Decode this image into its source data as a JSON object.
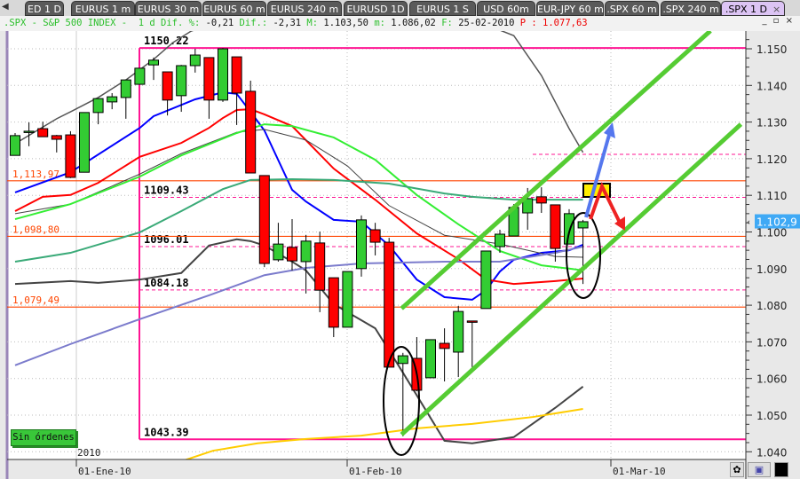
{
  "tabs": [
    {
      "label": "ED 1 D"
    },
    {
      "label": "EURUS 1 m"
    },
    {
      "label": "EURUS 30 m"
    },
    {
      "label": "EURUS 60 m"
    },
    {
      "label": "EURUS 240 m"
    },
    {
      "label": "EURUSD 1D"
    },
    {
      "label": "EURUS 1 S"
    },
    {
      "label": "USD 60m"
    },
    {
      "label": "EUR-JPY 60 m"
    },
    {
      "label": ".SPX 60 m"
    },
    {
      "label": ".SPX 240 m"
    },
    {
      "label": ".SPX 1 D",
      "active": true
    }
  ],
  "tab_close": "×",
  "info": {
    "symbol": ".SPX - S&P 500 INDEX -  1 d",
    "dif_pct_label": "Dif. %:",
    "dif_pct": "-0,21",
    "dif_label": "Dif.:",
    "dif": "-2,31",
    "max_label": "M:",
    "max": "1.103,50",
    "min_label": "m:",
    "min": "1.086,02",
    "date_label": "F:",
    "date": "25-02-2010",
    "price_label": "P :",
    "price": "1.077,63"
  },
  "window_controls": "_ ▫ ×",
  "orders_button": "Sin órdenes",
  "year_label": "2010",
  "current_price_tag": "1.102,9",
  "colors": {
    "up": "#33cc33",
    "down": "#ff0000",
    "pink": "#ff1493",
    "orange": "#ff4500",
    "channel": "#55cc33"
  },
  "chart_data": {
    "type": "candlestick",
    "symbol": ".SPX",
    "ylim": [
      1038,
      1158
    ],
    "yticks": [
      "1.040",
      "1.050",
      "1.060",
      "1.070",
      "1.080",
      "1.090",
      "1.100",
      "1.110",
      "1.120",
      "1.130",
      "1.140",
      "1.150"
    ],
    "xticks": [
      "01-Ene-10",
      "01-Feb-10",
      "01-Mar-10"
    ],
    "candles": [
      [
        1120.9,
        1127.0,
        1120.9,
        1126.3
      ],
      [
        1127.5,
        1129.9,
        1123.4,
        1127.5
      ],
      [
        1128.2,
        1130.1,
        1126.0,
        1126.0
      ],
      [
        1126.3,
        1126.5,
        1121.7,
        1125.3
      ],
      [
        1126.5,
        1127.5,
        1114.7,
        1114.9
      ],
      [
        1116.3,
        1132.6,
        1116.3,
        1132.6
      ],
      [
        1132.6,
        1136.4,
        1129.4,
        1136.4
      ],
      [
        1135.5,
        1137.9,
        1133.5,
        1136.9
      ],
      [
        1136.7,
        1141.5,
        1130.9,
        1141.5
      ],
      [
        1140.3,
        1144.7,
        1140.3,
        1144.7
      ],
      [
        1145.6,
        1147.6,
        1141.5,
        1146.9
      ],
      [
        1143.7,
        1143.7,
        1131.8,
        1136.0
      ],
      [
        1137.2,
        1145.6,
        1132.8,
        1145.4
      ],
      [
        1145.4,
        1150.0,
        1143.5,
        1148.3
      ],
      [
        1147.6,
        1147.6,
        1130.9,
        1136.0
      ],
      [
        1136.0,
        1150.22,
        1135.5,
        1150.0
      ],
      [
        1147.8,
        1147.8,
        1129.2,
        1137.9
      ],
      [
        1138.4,
        1141.3,
        1116.1,
        1116.1
      ],
      [
        1115.4,
        1115.4,
        1090.4,
        1091.4
      ],
      [
        1092.4,
        1102.5,
        1091.9,
        1096.7
      ],
      [
        1095.8,
        1103.5,
        1089.5,
        1092.1
      ],
      [
        1091.9,
        1099.2,
        1083.2,
        1097.5
      ],
      [
        1097.0,
        1100.1,
        1078.1,
        1084.1
      ],
      [
        1087.5,
        1087.5,
        1071.3,
        1074.0
      ],
      [
        1074.0,
        1089.2,
        1074.0,
        1089.2
      ],
      [
        1090.0,
        1104.5,
        1087.8,
        1103.3
      ],
      [
        1100.6,
        1102.5,
        1093.6,
        1097.2
      ],
      [
        1097.2,
        1098.4,
        1063.1,
        1063.1
      ],
      [
        1064.1,
        1067.0,
        1044.2,
        1066.2
      ],
      [
        1065.5,
        1071.3,
        1056.5,
        1056.8
      ],
      [
        1060.2,
        1070.6,
        1060.2,
        1070.6
      ],
      [
        1069.6,
        1073.7,
        1059.2,
        1068.2
      ],
      [
        1067.2,
        1079.8,
        1060.4,
        1078.3
      ],
      [
        1075.7,
        1075.7,
        1063.1,
        1075.4
      ],
      [
        1079.1,
        1094.8,
        1079.1,
        1094.8
      ],
      [
        1096.0,
        1100.6,
        1094.3,
        1099.4
      ],
      [
        1098.9,
        1107.6,
        1098.9,
        1106.7
      ],
      [
        1105.2,
        1112.0,
        1100.6,
        1109.1
      ],
      [
        1109.6,
        1112.2,
        1105.2,
        1107.9
      ],
      [
        1107.4,
        1107.4,
        1091.9,
        1095.5
      ],
      [
        1096.7,
        1106.2,
        1096.7,
        1105.0
      ],
      [
        1101.1,
        1103.3,
        1085.8,
        1102.8
      ]
    ],
    "candle_fields": [
      "open",
      "high",
      "low",
      "close"
    ],
    "indicators": [
      {
        "color": "#0000ff",
        "width": 2,
        "points": [
          [
            0,
            1110.8
          ],
          [
            4,
            1116.3
          ],
          [
            9,
            1128.4
          ],
          [
            10,
            1131.6
          ],
          [
            13,
            1136.2
          ],
          [
            15,
            1138.1
          ],
          [
            16,
            1137.7
          ],
          [
            17,
            1132.8
          ],
          [
            18,
            1127.7
          ],
          [
            20,
            1111.5
          ],
          [
            21,
            1108.3
          ],
          [
            23,
            1103.3
          ],
          [
            25,
            1102.8
          ],
          [
            27,
            1096.3
          ],
          [
            29,
            1087
          ],
          [
            31,
            1082.2
          ],
          [
            33,
            1081.5
          ],
          [
            34,
            1084.1
          ],
          [
            35,
            1089.2
          ],
          [
            36,
            1092.4
          ],
          [
            38,
            1094.3
          ],
          [
            40,
            1095
          ],
          [
            41,
            1096.5
          ]
        ]
      },
      {
        "color": "#ff0000",
        "width": 2,
        "points": [
          [
            0,
            1105.7
          ],
          [
            2,
            1109.6
          ],
          [
            4,
            1110.1
          ],
          [
            6,
            1113.4
          ],
          [
            9,
            1120.5
          ],
          [
            12,
            1124.3
          ],
          [
            14,
            1128.4
          ],
          [
            15,
            1131.1
          ],
          [
            16,
            1133.3
          ],
          [
            17,
            1133.5
          ],
          [
            18,
            1132.1
          ],
          [
            20,
            1128.9
          ],
          [
            23,
            1117.3
          ],
          [
            26,
            1108.8
          ],
          [
            29,
            1099.6
          ],
          [
            32,
            1092.6
          ],
          [
            34,
            1087.0
          ],
          [
            36,
            1085.8
          ],
          [
            39,
            1086.6
          ],
          [
            41,
            1087.3
          ]
        ]
      },
      {
        "color": "#444444",
        "width": 1,
        "points": [
          [
            0,
            1105.0
          ],
          [
            4,
            1107.6
          ],
          [
            9,
            1115.8
          ],
          [
            12,
            1121.4
          ],
          [
            16,
            1127.2
          ],
          [
            18,
            1128.0
          ],
          [
            21,
            1125.1
          ],
          [
            24,
            1118.0
          ],
          [
            27,
            1107.2
          ],
          [
            31,
            1099.1
          ],
          [
            35,
            1096.7
          ],
          [
            39,
            1093.3
          ],
          [
            41,
            1093.1
          ]
        ]
      },
      {
        "color": "#33ee33",
        "width": 2,
        "points": [
          [
            0,
            1103.5
          ],
          [
            4,
            1107.6
          ],
          [
            9,
            1115.1
          ],
          [
            12,
            1120.9
          ],
          [
            16,
            1127.0
          ],
          [
            18,
            1129.4
          ],
          [
            20,
            1128.9
          ],
          [
            23,
            1125.8
          ],
          [
            26,
            1119.7
          ],
          [
            29,
            1110.1
          ],
          [
            32,
            1102.1
          ],
          [
            35,
            1094.8
          ],
          [
            38,
            1090.9
          ],
          [
            40,
            1090.0
          ],
          [
            41,
            1089.5
          ]
        ]
      },
      {
        "color": "#3aaa78",
        "width": 2,
        "points": [
          [
            0,
            1091.9
          ],
          [
            4,
            1094.3
          ],
          [
            9,
            1099.9
          ],
          [
            12,
            1105.7
          ],
          [
            15,
            1111.7
          ],
          [
            17,
            1114.2
          ],
          [
            20,
            1114.4
          ],
          [
            23,
            1114.2
          ],
          [
            27,
            1113.2
          ],
          [
            31,
            1110.5
          ],
          [
            33,
            1109.6
          ],
          [
            36,
            1108.8
          ],
          [
            41,
            1108.8
          ]
        ]
      },
      {
        "color": "#444444",
        "width": 2,
        "points": [
          [
            0,
            1085.8
          ],
          [
            4,
            1086.6
          ],
          [
            6,
            1086.1
          ],
          [
            9,
            1087.0
          ],
          [
            12,
            1088.8
          ],
          [
            14,
            1096.3
          ],
          [
            16,
            1098.0
          ],
          [
            17,
            1097.5
          ],
          [
            18,
            1096.3
          ],
          [
            20,
            1091.9
          ],
          [
            21,
            1089.5
          ],
          [
            23,
            1080.3
          ],
          [
            26,
            1073.7
          ],
          [
            28,
            1061.6
          ],
          [
            31,
            1043.0
          ],
          [
            33,
            1042.3
          ],
          [
            36,
            1044.0
          ],
          [
            39,
            1052.0
          ],
          [
            41,
            1057.8
          ]
        ]
      },
      {
        "color": "#555555",
        "width": 1.5,
        "points": [
          [
            0,
            1124.1
          ],
          [
            3,
            1130.9
          ],
          [
            4,
            1132.8
          ],
          [
            6,
            1136.7
          ],
          [
            8,
            1141.5
          ],
          [
            10,
            1147.1
          ],
          [
            11.4,
            1151.7
          ],
          [
            12.7,
            1154.8
          ],
          [
            14,
            1156.5
          ],
          [
            16,
            1162
          ],
          [
            31,
            1162
          ],
          [
            33.5,
            1157.3
          ],
          [
            36,
            1153.6
          ],
          [
            38,
            1142.7
          ],
          [
            40,
            1128.2
          ],
          [
            41,
            1121.7
          ]
        ]
      },
      {
        "color": "#7b7bcc",
        "width": 2,
        "points": [
          [
            0,
            1063.6
          ],
          [
            4,
            1069.4
          ],
          [
            9,
            1076.2
          ],
          [
            14,
            1082.7
          ],
          [
            18,
            1088.2
          ],
          [
            21,
            1090.2
          ],
          [
            25,
            1091.4
          ],
          [
            31,
            1091.9
          ],
          [
            35,
            1091.9
          ],
          [
            39,
            1094.3
          ],
          [
            41,
            1096.0
          ]
        ]
      },
      {
        "color": "#ffcc00",
        "width": 2,
        "points": [
          [
            12,
            1037.4
          ],
          [
            14.3,
            1040.3
          ],
          [
            17.5,
            1042.3
          ],
          [
            21,
            1043.5
          ],
          [
            25,
            1044.4
          ],
          [
            29,
            1046.4
          ],
          [
            33,
            1047.6
          ],
          [
            37.4,
            1049.5
          ],
          [
            41,
            1051.7
          ]
        ]
      }
    ],
    "levels": [
      {
        "value": 1150.22,
        "label": "1150.22",
        "style": "pink-solid"
      },
      {
        "value": 1043.39,
        "label": "1043.39",
        "style": "pink-solid"
      },
      {
        "value": 1109.43,
        "label": "1109.43",
        "style": "pink-dashed"
      },
      {
        "value": 1096.01,
        "label": "1096.01",
        "style": "pink-dashed"
      },
      {
        "value": 1084.18,
        "label": "1084.18",
        "style": "pink-dashed"
      },
      {
        "value": 1121.2,
        "label": "",
        "style": "pink-dashed-right"
      },
      {
        "value": 1113.97,
        "label": "1,113,97",
        "style": "orange"
      },
      {
        "value": 1098.8,
        "label": "1,098,80",
        "style": "orange"
      },
      {
        "value": 1079.49,
        "label": "1,079,49",
        "style": "orange"
      }
    ],
    "channel": [
      {
        "from": [
          27.9,
          1079.1
        ],
        "to": [
          50.2,
          1154.9
        ]
      },
      {
        "from": [
          27.9,
          1044.7
        ],
        "to": [
          52.4,
          1129.4
        ]
      }
    ]
  }
}
